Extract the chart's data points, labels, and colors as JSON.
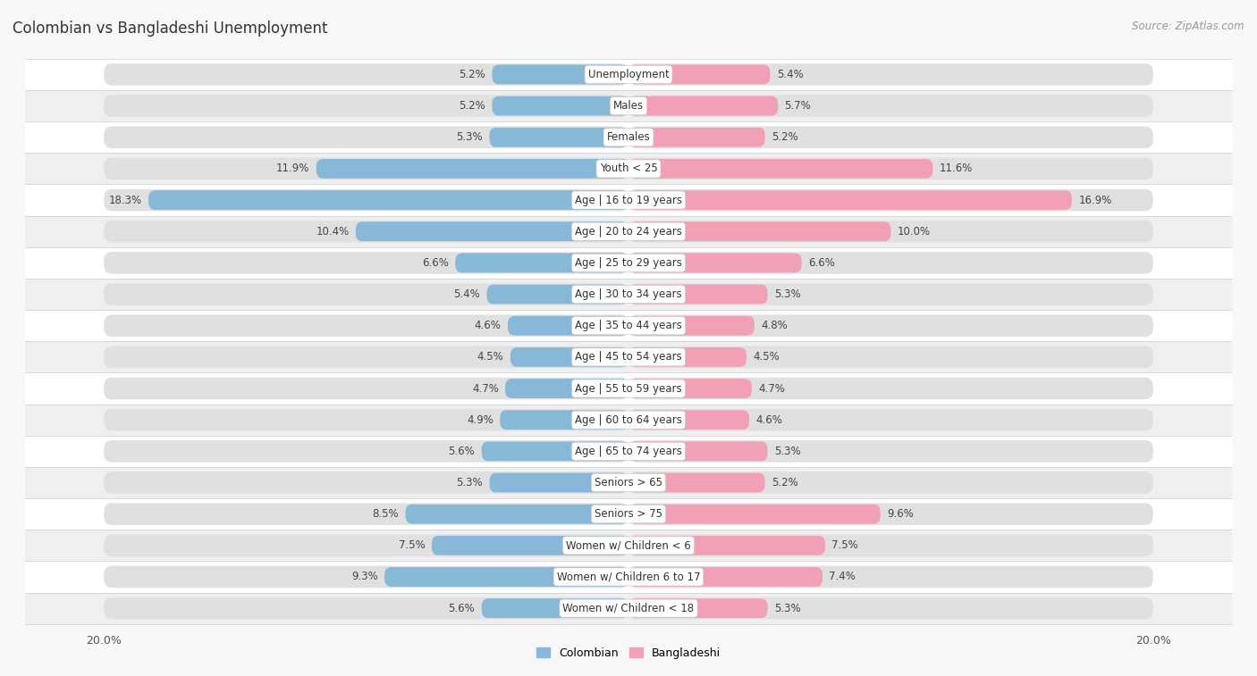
{
  "title": "Colombian vs Bangladeshi Unemployment",
  "source": "Source: ZipAtlas.com",
  "categories": [
    "Unemployment",
    "Males",
    "Females",
    "Youth < 25",
    "Age | 16 to 19 years",
    "Age | 20 to 24 years",
    "Age | 25 to 29 years",
    "Age | 30 to 34 years",
    "Age | 35 to 44 years",
    "Age | 45 to 54 years",
    "Age | 55 to 59 years",
    "Age | 60 to 64 years",
    "Age | 65 to 74 years",
    "Seniors > 65",
    "Seniors > 75",
    "Women w/ Children < 6",
    "Women w/ Children 6 to 17",
    "Women w/ Children < 18"
  ],
  "colombian": [
    5.2,
    5.2,
    5.3,
    11.9,
    18.3,
    10.4,
    6.6,
    5.4,
    4.6,
    4.5,
    4.7,
    4.9,
    5.6,
    5.3,
    8.5,
    7.5,
    9.3,
    5.6
  ],
  "bangladeshi": [
    5.4,
    5.7,
    5.2,
    11.6,
    16.9,
    10.0,
    6.6,
    5.3,
    4.8,
    4.5,
    4.7,
    4.6,
    5.3,
    5.2,
    9.6,
    7.5,
    7.4,
    5.3
  ],
  "colombian_color": "#88b8d8",
  "bangladeshi_color": "#f2a0b5",
  "colombian_highlight": "#5a9dc8",
  "bangladeshi_highlight": "#e8607a",
  "colombian_label": "Colombian",
  "bangladeshi_label": "Bangladeshi",
  "max_val": 20.0,
  "bg_color": "#f7f7f7",
  "row_colors": [
    "#ffffff",
    "#efefef"
  ],
  "bar_bg_color": "#e0e0e0",
  "title_fontsize": 12,
  "source_fontsize": 8.5,
  "label_fontsize": 8.5,
  "value_fontsize": 8.5
}
